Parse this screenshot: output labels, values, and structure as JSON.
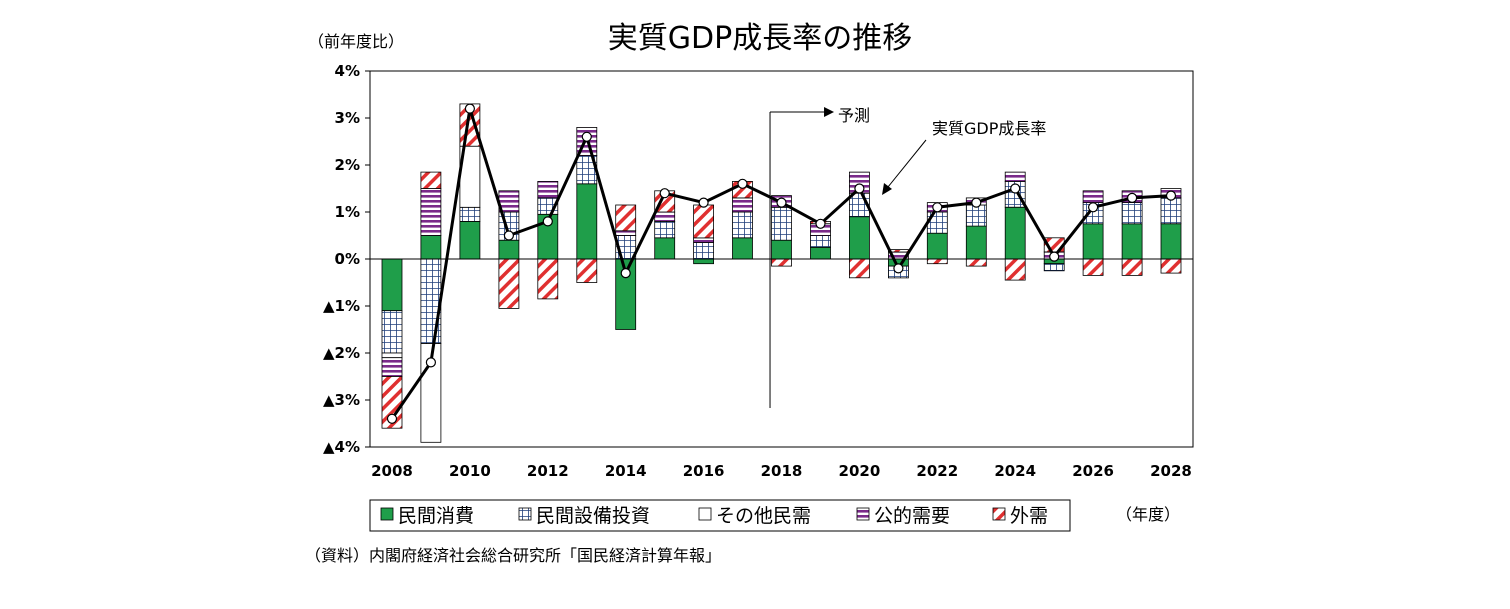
{
  "chart_data": {
    "type": "bar",
    "title": "実質GDP成長率の推移",
    "ylabel": "（前年度比）",
    "xlabel": "（年度）",
    "source": "（資料）内閣府経済社会総合研究所「国民経済計算年報」",
    "ylim": [
      -4,
      4
    ],
    "y_ticks": [
      4,
      3,
      2,
      1,
      0,
      -1,
      -2,
      -3,
      -4
    ],
    "y_tick_labels": [
      "4%",
      "3%",
      "2%",
      "1%",
      "0%",
      "▲1%",
      "▲2%",
      "▲3%",
      "▲4%"
    ],
    "x_tick_labels": [
      "2008",
      "2010",
      "2012",
      "2014",
      "2016",
      "2018",
      "2020",
      "2022",
      "2024",
      "2026",
      "2028"
    ],
    "categories": [
      "2008",
      "2009",
      "2010",
      "2011",
      "2012",
      "2013",
      "2014",
      "2015",
      "2016",
      "2017",
      "2018",
      "2019",
      "2020",
      "2021",
      "2022",
      "2023",
      "2024",
      "2025",
      "2026",
      "2027",
      "2028"
    ],
    "series": [
      {
        "name": "民間消費",
        "color": "#1f9e4a",
        "pattern": "solid",
        "values": [
          -1.1,
          0.5,
          0.8,
          0.4,
          0.95,
          1.6,
          -1.5,
          0.45,
          -0.1,
          0.45,
          0.4,
          0.25,
          0.9,
          -0.15,
          0.55,
          0.7,
          1.1,
          -0.1,
          0.75,
          0.75,
          0.75
        ]
      },
      {
        "name": "民間設備投資",
        "color": "#1f3d7a",
        "pattern": "grid",
        "values": [
          -0.9,
          -1.8,
          0.3,
          0.6,
          0.35,
          0.6,
          0.5,
          0.35,
          0.35,
          0.55,
          0.7,
          0.25,
          0.5,
          -0.25,
          0.45,
          0.45,
          0.55,
          -0.15,
          0.45,
          0.45,
          0.55
        ]
      },
      {
        "name": "その他民需",
        "color": "#ffffff",
        "pattern": "white",
        "values": [
          -0.1,
          -2.1,
          1.3,
          0.0,
          0.0,
          0.0,
          0.0,
          0.0,
          0.0,
          0.0,
          0.0,
          0.0,
          0.0,
          0.0,
          0.0,
          0.0,
          0.0,
          0.0,
          0.0,
          0.0,
          0.0
        ]
      },
      {
        "name": "公的需要",
        "color": "#7a2a8a",
        "pattern": "hstripe",
        "values": [
          -0.4,
          1.0,
          0.0,
          0.45,
          0.35,
          0.6,
          0.1,
          0.2,
          0.1,
          0.3,
          0.25,
          0.25,
          0.45,
          0.15,
          0.2,
          0.15,
          0.2,
          0.15,
          0.25,
          0.25,
          0.2
        ]
      },
      {
        "name": "外需",
        "color": "#e03030",
        "pattern": "diag",
        "values": [
          -1.1,
          0.35,
          0.9,
          -1.05,
          -0.85,
          -0.5,
          0.55,
          0.45,
          0.7,
          0.35,
          -0.15,
          0.05,
          -0.4,
          0.05,
          -0.1,
          -0.15,
          -0.45,
          0.3,
          -0.35,
          -0.35,
          -0.3
        ]
      }
    ],
    "line_series": {
      "name": "実質GDP成長率",
      "values": [
        -3.4,
        -2.2,
        3.2,
        0.5,
        0.8,
        2.6,
        -0.3,
        1.4,
        1.2,
        1.6,
        1.2,
        0.75,
        1.5,
        -0.2,
        1.1,
        1.2,
        1.5,
        0.05,
        1.1,
        1.3,
        1.35
      ]
    },
    "annotations": {
      "forecast_label": "予測",
      "forecast_start_year": "2018",
      "line_label": "実質GDP成長率"
    },
    "grid": false,
    "legend_position": "bottom"
  }
}
